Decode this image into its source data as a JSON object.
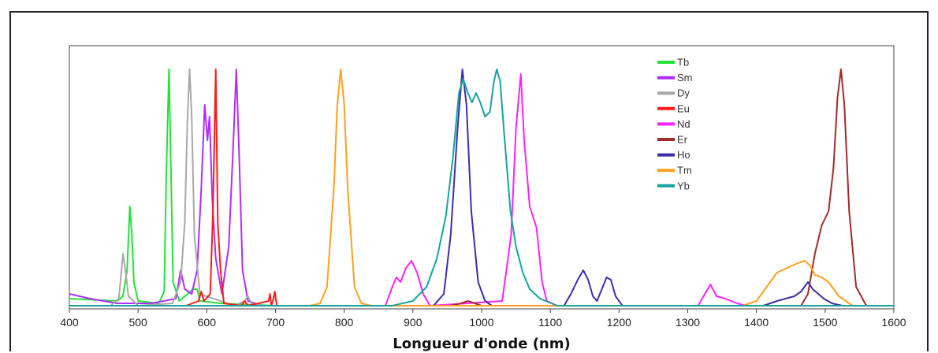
{
  "chart_data": {
    "type": "line",
    "title": "",
    "xlabel": "Longueur d'onde (nm)",
    "ylabel": "",
    "xlim": [
      400,
      1600
    ],
    "ylim": [
      0,
      1
    ],
    "xticks": [
      "400",
      "500",
      "600",
      "700",
      "800",
      "900",
      "1000",
      "1100",
      "1200",
      "1300",
      "1400",
      "1500",
      "1600"
    ],
    "grid": false,
    "legend_position": "top-right",
    "series": [
      {
        "name": "Tb",
        "color": "#22e23a",
        "points": [
          [
            400,
            0.03
          ],
          [
            470,
            0.02
          ],
          [
            478,
            0.04
          ],
          [
            484,
            0.15
          ],
          [
            488,
            0.42
          ],
          [
            491,
            0.3
          ],
          [
            494,
            0.1
          ],
          [
            500,
            0.02
          ],
          [
            530,
            0.01
          ],
          [
            538,
            0.06
          ],
          [
            541,
            0.55
          ],
          [
            545,
            1.0
          ],
          [
            548,
            0.55
          ],
          [
            551,
            0.1
          ],
          [
            560,
            0.02
          ],
          [
            580,
            0.07
          ],
          [
            586,
            0.07
          ],
          [
            590,
            0.02
          ],
          [
            620,
            0.01
          ],
          [
            700,
            0.0
          ]
        ]
      },
      {
        "name": "Sm",
        "color": "#b02cff",
        "points": [
          [
            400,
            0.05
          ],
          [
            430,
            0.03
          ],
          [
            470,
            0.01
          ],
          [
            520,
            0.01
          ],
          [
            555,
            0.03
          ],
          [
            562,
            0.15
          ],
          [
            568,
            0.07
          ],
          [
            578,
            0.05
          ],
          [
            586,
            0.15
          ],
          [
            592,
            0.5
          ],
          [
            597,
            0.85
          ],
          [
            601,
            0.7
          ],
          [
            604,
            0.8
          ],
          [
            608,
            0.45
          ],
          [
            613,
            0.2
          ],
          [
            622,
            0.05
          ],
          [
            632,
            0.25
          ],
          [
            638,
            0.65
          ],
          [
            643,
            1.0
          ],
          [
            647,
            0.65
          ],
          [
            652,
            0.15
          ],
          [
            660,
            0.02
          ],
          [
            680,
            0.0
          ]
        ]
      },
      {
        "name": "Dy",
        "color": "#a8a8a8",
        "points": [
          [
            400,
            0.0
          ],
          [
            460,
            0.0
          ],
          [
            472,
            0.03
          ],
          [
            478,
            0.22
          ],
          [
            482,
            0.14
          ],
          [
            486,
            0.04
          ],
          [
            500,
            0.0
          ],
          [
            550,
            0.01
          ],
          [
            562,
            0.1
          ],
          [
            568,
            0.35
          ],
          [
            572,
            0.8
          ],
          [
            575,
            1.0
          ],
          [
            578,
            0.8
          ],
          [
            582,
            0.3
          ],
          [
            590,
            0.05
          ],
          [
            640,
            0.0
          ],
          [
            655,
            0.02
          ],
          [
            660,
            0.04
          ],
          [
            665,
            0.01
          ],
          [
            680,
            0.0
          ]
        ]
      },
      {
        "name": "Eu",
        "color": "#ff1a1a",
        "points": [
          [
            400,
            0.0
          ],
          [
            570,
            0.0
          ],
          [
            588,
            0.02
          ],
          [
            592,
            0.06
          ],
          [
            596,
            0.02
          ],
          [
            605,
            0.05
          ],
          [
            609,
            0.4
          ],
          [
            613,
            1.0
          ],
          [
            616,
            0.35
          ],
          [
            620,
            0.15
          ],
          [
            625,
            0.01
          ],
          [
            650,
            0.0
          ],
          [
            655,
            0.02
          ],
          [
            660,
            0.0
          ],
          [
            690,
            0.02
          ],
          [
            692,
            0.05
          ],
          [
            694,
            0.0
          ],
          [
            697,
            0.03
          ],
          [
            699,
            0.06
          ],
          [
            702,
            0.0
          ]
        ]
      },
      {
        "name": "Nd",
        "color": "#ff22ff",
        "points": [
          [
            400,
            0.0
          ],
          [
            860,
            0.0
          ],
          [
            870,
            0.08
          ],
          [
            876,
            0.12
          ],
          [
            882,
            0.1
          ],
          [
            890,
            0.16
          ],
          [
            898,
            0.19
          ],
          [
            906,
            0.14
          ],
          [
            915,
            0.05
          ],
          [
            925,
            0.0
          ],
          [
            1030,
            0.02
          ],
          [
            1043,
            0.3
          ],
          [
            1050,
            0.75
          ],
          [
            1057,
            0.98
          ],
          [
            1062,
            0.7
          ],
          [
            1070,
            0.42
          ],
          [
            1080,
            0.33
          ],
          [
            1088,
            0.1
          ],
          [
            1095,
            0.02
          ],
          [
            1110,
            0.0
          ],
          [
            1315,
            0.0
          ],
          [
            1325,
            0.05
          ],
          [
            1333,
            0.09
          ],
          [
            1342,
            0.04
          ],
          [
            1355,
            0.03
          ],
          [
            1372,
            0.01
          ],
          [
            1385,
            0.0
          ],
          [
            1600,
            0.0
          ]
        ]
      },
      {
        "name": "Er",
        "color": "#a12a2a",
        "points": [
          [
            400,
            0.0
          ],
          [
            955,
            0.0
          ],
          [
            970,
            0.01
          ],
          [
            980,
            0.02
          ],
          [
            990,
            0.01
          ],
          [
            1000,
            0.0
          ],
          [
            1465,
            0.0
          ],
          [
            1475,
            0.05
          ],
          [
            1485,
            0.22
          ],
          [
            1495,
            0.34
          ],
          [
            1505,
            0.4
          ],
          [
            1512,
            0.58
          ],
          [
            1518,
            0.88
          ],
          [
            1523,
            1.0
          ],
          [
            1528,
            0.85
          ],
          [
            1535,
            0.4
          ],
          [
            1545,
            0.08
          ],
          [
            1560,
            0.0
          ],
          [
            1600,
            0.0
          ]
        ]
      },
      {
        "name": "Ho",
        "color": "#3b2ea8",
        "points": [
          [
            400,
            0.0
          ],
          [
            930,
            0.0
          ],
          [
            945,
            0.05
          ],
          [
            955,
            0.3
          ],
          [
            965,
            0.75
          ],
          [
            972,
            1.0
          ],
          [
            978,
            0.85
          ],
          [
            985,
            0.4
          ],
          [
            995,
            0.1
          ],
          [
            1005,
            0.02
          ],
          [
            1015,
            0.0
          ],
          [
            1120,
            0.0
          ],
          [
            1130,
            0.05
          ],
          [
            1140,
            0.11
          ],
          [
            1148,
            0.15
          ],
          [
            1155,
            0.11
          ],
          [
            1162,
            0.04
          ],
          [
            1168,
            0.02
          ],
          [
            1175,
            0.07
          ],
          [
            1182,
            0.12
          ],
          [
            1188,
            0.11
          ],
          [
            1195,
            0.04
          ],
          [
            1205,
            0.0
          ],
          [
            1410,
            0.0
          ],
          [
            1430,
            0.02
          ],
          [
            1455,
            0.04
          ],
          [
            1465,
            0.06
          ],
          [
            1475,
            0.1
          ],
          [
            1482,
            0.07
          ],
          [
            1490,
            0.05
          ],
          [
            1498,
            0.03
          ],
          [
            1510,
            0.01
          ],
          [
            1525,
            0.0
          ],
          [
            1600,
            0.0
          ]
        ]
      },
      {
        "name": "Tm",
        "color": "#ffa020",
        "points": [
          [
            400,
            0.0
          ],
          [
            750,
            0.0
          ],
          [
            765,
            0.01
          ],
          [
            775,
            0.08
          ],
          [
            785,
            0.5
          ],
          [
            790,
            0.85
          ],
          [
            795,
            1.0
          ],
          [
            800,
            0.85
          ],
          [
            805,
            0.5
          ],
          [
            815,
            0.08
          ],
          [
            825,
            0.01
          ],
          [
            840,
            0.0
          ],
          [
            1380,
            0.0
          ],
          [
            1400,
            0.02
          ],
          [
            1415,
            0.08
          ],
          [
            1430,
            0.14
          ],
          [
            1445,
            0.16
          ],
          [
            1460,
            0.18
          ],
          [
            1470,
            0.19
          ],
          [
            1478,
            0.17
          ],
          [
            1485,
            0.13
          ],
          [
            1495,
            0.12
          ],
          [
            1505,
            0.1
          ],
          [
            1520,
            0.04
          ],
          [
            1540,
            0.0
          ],
          [
            1600,
            0.0
          ]
        ]
      },
      {
        "name": "Yb",
        "color": "#17a39b",
        "points": [
          [
            400,
            0.0
          ],
          [
            870,
            0.0
          ],
          [
            900,
            0.02
          ],
          [
            920,
            0.08
          ],
          [
            935,
            0.2
          ],
          [
            948,
            0.38
          ],
          [
            958,
            0.62
          ],
          [
            967,
            0.9
          ],
          [
            973,
            0.96
          ],
          [
            980,
            0.9
          ],
          [
            986,
            0.86
          ],
          [
            992,
            0.9
          ],
          [
            998,
            0.86
          ],
          [
            1005,
            0.8
          ],
          [
            1012,
            0.82
          ],
          [
            1018,
            0.95
          ],
          [
            1022,
            1.0
          ],
          [
            1027,
            0.95
          ],
          [
            1033,
            0.72
          ],
          [
            1042,
            0.4
          ],
          [
            1050,
            0.25
          ],
          [
            1060,
            0.14
          ],
          [
            1070,
            0.07
          ],
          [
            1085,
            0.03
          ],
          [
            1110,
            0.0
          ],
          [
            1600,
            0.0
          ]
        ]
      }
    ]
  }
}
